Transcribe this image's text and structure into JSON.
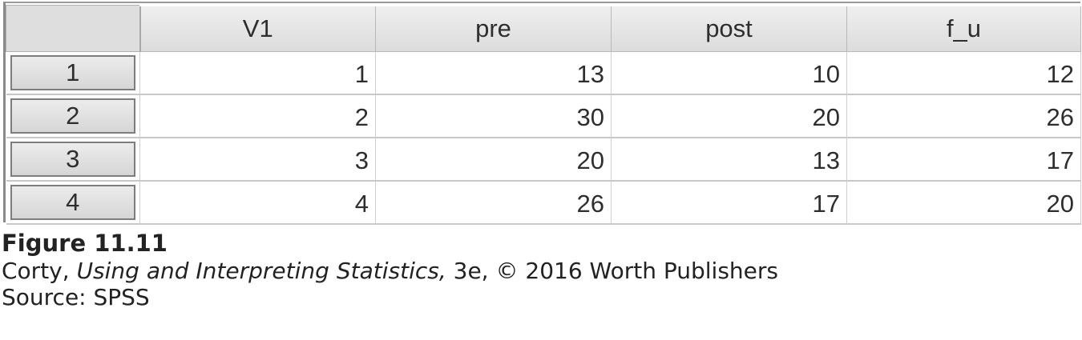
{
  "table": {
    "columns": [
      "V1",
      "pre",
      "post",
      "f_u"
    ],
    "rows": [
      {
        "row_number": "1",
        "cells": [
          "1",
          "13",
          "10",
          "12"
        ]
      },
      {
        "row_number": "2",
        "cells": [
          "2",
          "30",
          "20",
          "26"
        ]
      },
      {
        "row_number": "3",
        "cells": [
          "3",
          "20",
          "13",
          "17"
        ]
      },
      {
        "row_number": "4",
        "cells": [
          "4",
          "26",
          "17",
          "20"
        ]
      }
    ]
  },
  "caption": {
    "figure_label": "Figure 11.11",
    "author": "Corty,",
    "book_title": "Using and Interpreting Statistics,",
    "edition_publisher": "3e, © 2016 Worth Publishers",
    "source": "Source: SPSS"
  }
}
